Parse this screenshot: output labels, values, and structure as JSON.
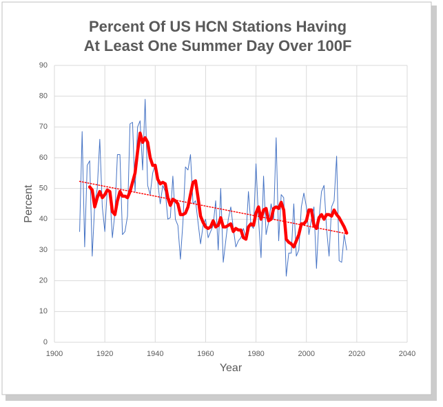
{
  "chart_data": {
    "type": "line",
    "title": [
      "Percent Of US HCN Stations Having",
      "At Least One Summer Day Over 100F"
    ],
    "xlabel": "Year",
    "ylabel": "Percent",
    "x": [
      1910,
      1911,
      1912,
      1913,
      1914,
      1915,
      1916,
      1917,
      1918,
      1919,
      1920,
      1921,
      1922,
      1923,
      1924,
      1925,
      1926,
      1927,
      1928,
      1929,
      1930,
      1931,
      1932,
      1933,
      1934,
      1935,
      1936,
      1937,
      1938,
      1939,
      1940,
      1941,
      1942,
      1943,
      1944,
      1945,
      1946,
      1947,
      1948,
      1949,
      1950,
      1951,
      1952,
      1953,
      1954,
      1955,
      1956,
      1957,
      1958,
      1959,
      1960,
      1961,
      1962,
      1963,
      1964,
      1965,
      1966,
      1967,
      1968,
      1969,
      1970,
      1971,
      1972,
      1973,
      1974,
      1975,
      1976,
      1977,
      1978,
      1979,
      1980,
      1981,
      1982,
      1983,
      1984,
      1985,
      1986,
      1987,
      1988,
      1989,
      1990,
      1991,
      1992,
      1993,
      1994,
      1995,
      1996,
      1997,
      1998,
      1999,
      2000,
      2001,
      2002,
      2003,
      2004,
      2005,
      2006,
      2007,
      2008,
      2009,
      2010,
      2011,
      2012,
      2013,
      2014,
      2015,
      2016
    ],
    "series": [
      {
        "color": "#4472c4",
        "width": 1,
        "values": [
          36,
          68.5,
          31,
          57.5,
          59,
          28,
          45,
          50,
          66,
          44,
          36,
          50,
          48,
          34,
          42,
          61,
          61,
          35,
          36,
          41,
          71,
          71.5,
          49,
          70,
          72,
          56,
          79,
          51,
          48,
          55,
          58,
          52,
          45,
          51,
          49,
          40,
          40.5,
          54,
          40,
          38,
          27,
          39,
          57,
          56,
          61,
          45,
          46,
          39,
          32,
          38,
          40,
          34,
          36,
          38,
          46,
          30,
          50,
          26,
          33,
          40,
          44,
          37,
          31,
          33,
          34,
          37,
          34,
          49,
          38,
          37,
          58,
          40,
          27.5,
          54,
          35,
          39,
          45,
          40,
          66.5,
          33,
          48,
          47,
          21.5,
          29,
          29,
          45,
          28,
          30,
          44,
          48.5,
          44,
          35,
          40,
          44,
          24,
          40,
          49,
          51,
          37,
          28,
          44,
          46,
          60.5,
          26.5,
          26,
          35,
          30
        ]
      },
      {
        "color": "#ff0000",
        "width": 4.5,
        "values": [
          null,
          null,
          null,
          null,
          50.5,
          49.5,
          44,
          47,
          49,
          47,
          48,
          49.5,
          49,
          42.5,
          41.5,
          46,
          49,
          47.5,
          47.5,
          47,
          49,
          52,
          55,
          62,
          68,
          65,
          66.5,
          65,
          60,
          57.5,
          57.5,
          53,
          51.5,
          52,
          51.5,
          47,
          44.5,
          46.5,
          46,
          45,
          41.5,
          41.5,
          42,
          44,
          48,
          52,
          52.5,
          47,
          41,
          39,
          37.5,
          37,
          37.5,
          39.5,
          37.5,
          38,
          40.5,
          37.5,
          37.5,
          38,
          38.5,
          36,
          37,
          36.5,
          36.5,
          34,
          33.5,
          37.5,
          38.5,
          38,
          42,
          44,
          40,
          43,
          43.5,
          39.5,
          40,
          43.5,
          44,
          43.5,
          45.5,
          43,
          33.5,
          32.5,
          32,
          31,
          33,
          35,
          38.5,
          38.5,
          39.5,
          43,
          43,
          38,
          37,
          40.5,
          41.5,
          40,
          41.5,
          41.5,
          41,
          43,
          41.5,
          40.5,
          39,
          37.5,
          35.5
        ]
      },
      {
        "color": "#ff0000",
        "width": 1.5,
        "dotted": true,
        "x": [
          1910,
          2016
        ],
        "values": [
          52.3,
          35.3
        ]
      }
    ],
    "xlim": [
      1900,
      2040
    ],
    "xticks": [
      1900,
      1920,
      1940,
      1960,
      1980,
      2000,
      2020,
      2040
    ],
    "ylim": [
      0,
      90
    ],
    "yticks": [
      0,
      10,
      20,
      30,
      40,
      50,
      60,
      70,
      80,
      90
    ],
    "grid": true
  }
}
